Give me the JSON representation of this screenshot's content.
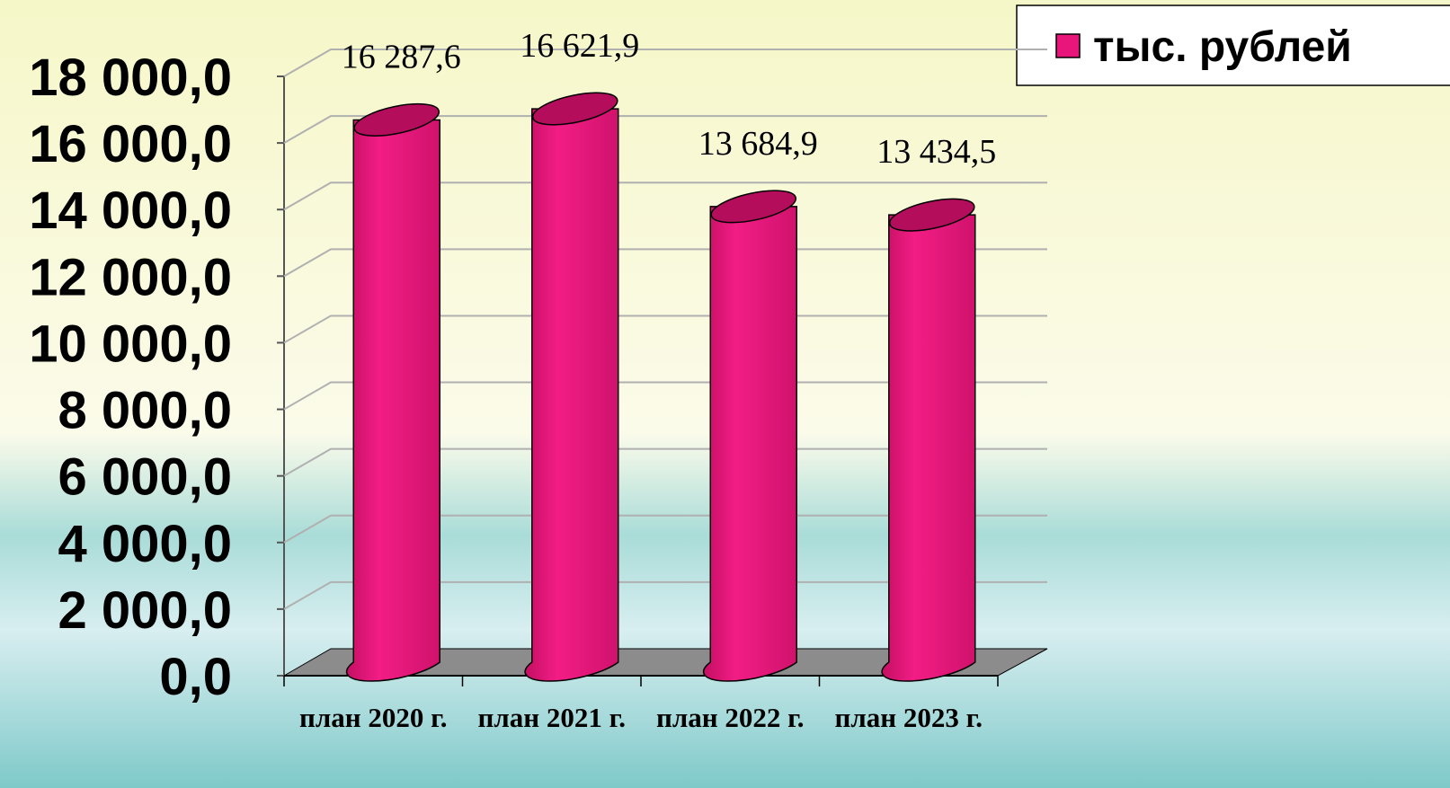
{
  "chart_data": {
    "type": "bar",
    "categories": [
      "план 2020 г.",
      "план 2021 г.",
      "план 2022 г.",
      "план 2023 г."
    ],
    "series": [
      {
        "name": "тыс. рублей",
        "color": "#e8157a",
        "values": [
          16287.6,
          16621.9,
          13684.9,
          13434.5
        ],
        "value_labels": [
          "16 287,6",
          "16 621,9",
          "13 684,9",
          "13 434,5"
        ]
      }
    ],
    "ylim": [
      0,
      18000
    ],
    "yticks": [
      {
        "value": 0,
        "label": "0,0"
      },
      {
        "value": 2000,
        "label": "2 000,0"
      },
      {
        "value": 4000,
        "label": "4 000,0"
      },
      {
        "value": 6000,
        "label": "6 000,0"
      },
      {
        "value": 8000,
        "label": "8 000,0"
      },
      {
        "value": 10000,
        "label": "10 000,0"
      },
      {
        "value": 12000,
        "label": "12 000,0"
      },
      {
        "value": 14000,
        "label": "14 000,0"
      },
      {
        "value": 16000,
        "label": "16 000,0"
      },
      {
        "value": 18000,
        "label": "18 000,0"
      }
    ],
    "grid": true,
    "legend": "top-right"
  }
}
